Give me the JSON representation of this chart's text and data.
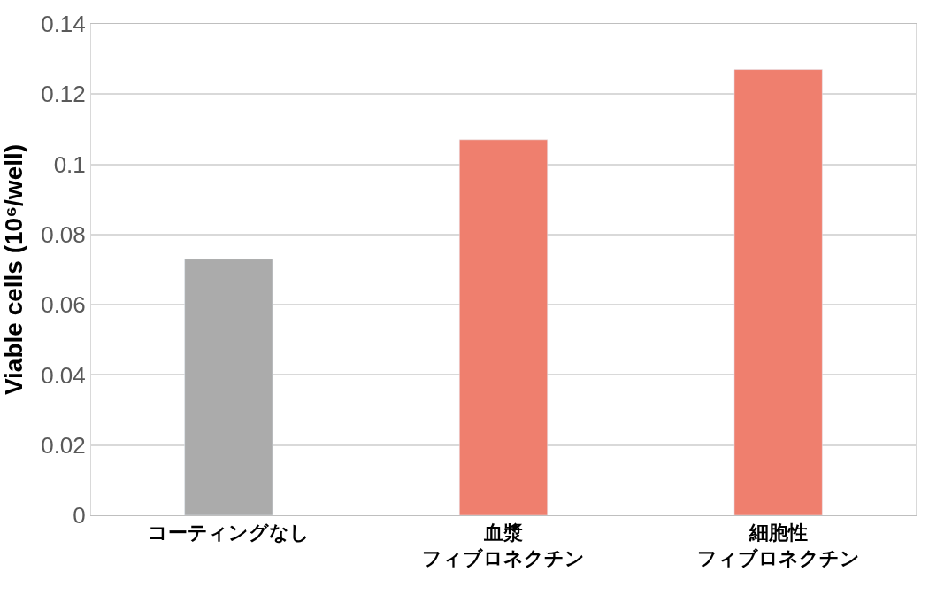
{
  "chart_data": {
    "type": "bar",
    "ylabel": "Viable cells (10⁶/well)",
    "categories": [
      "コーティングなし",
      "血漿フィブロネクチン",
      "細胞性フィブロネクチン"
    ],
    "values": [
      0.073,
      0.107,
      0.127
    ],
    "colors": [
      "#ababab",
      "#ef7f6e",
      "#ef7f6e"
    ],
    "ylim": [
      0,
      0.14
    ],
    "yticks": [
      0,
      0.02,
      0.04,
      0.06,
      0.08,
      0.1,
      0.12,
      0.14
    ],
    "grid": "y"
  }
}
